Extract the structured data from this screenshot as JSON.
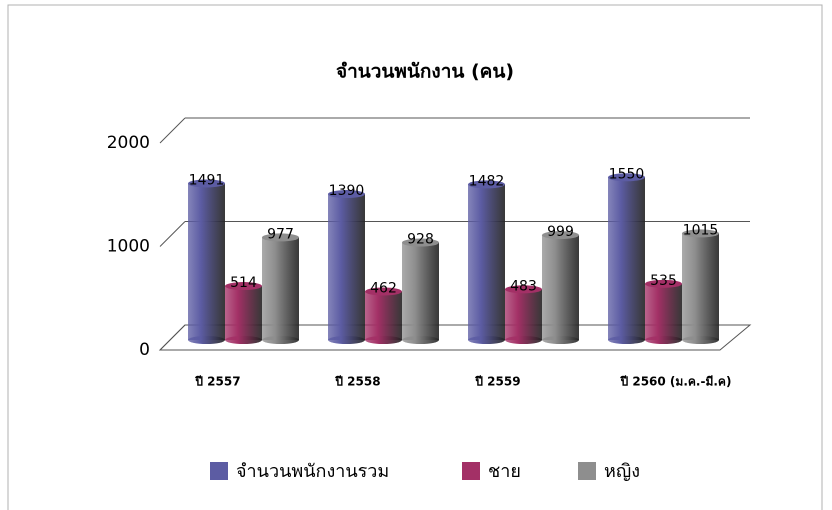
{
  "chart_data": {
    "type": "bar3d",
    "title": "จำนวนพนักงาน (คน)",
    "categories": [
      "ปี 2557",
      "ปี 2558",
      "ปี 2559",
      "ปี 2560 (ม.ค.-มี.ค)"
    ],
    "series": [
      {
        "name": "จำนวนพนักงานรวม",
        "color": "#5c5ca3",
        "values": [
          1491,
          1390,
          1482,
          1550
        ]
      },
      {
        "name": "ชาย",
        "color": "#a33066",
        "values": [
          514,
          462,
          483,
          535
        ]
      },
      {
        "name": "หญิง",
        "color": "#8e8e8e",
        "values": [
          977,
          928,
          999,
          1015
        ]
      }
    ],
    "ylim": [
      0,
      2000
    ],
    "yticks": [
      0,
      1000,
      2000
    ],
    "grid": true,
    "legend": "bottom"
  }
}
